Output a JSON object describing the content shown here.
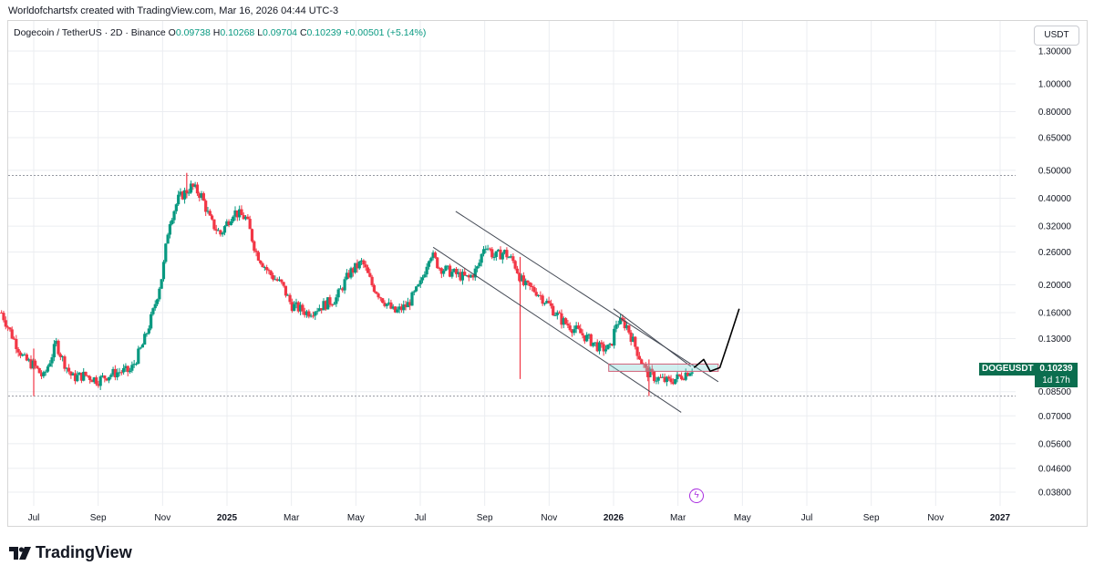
{
  "caption": "Worldofchartsfx created with TradingView.com, Mar 16, 2026 04:44 UTC-3",
  "legend": {
    "symbol": "Dogecoin / TetherUS · 2D · Binance",
    "open_label": "O",
    "open": "0.09738",
    "high_label": "H",
    "high": "0.10268",
    "low_label": "L",
    "low": "0.09704",
    "close_label": "C",
    "close": "0.10239",
    "change": "+0.00501 (+5.14%)"
  },
  "currency": "USDT",
  "price_tag": {
    "symbol": "DOGEUSDT",
    "price": "0.10239",
    "countdown": "1d 17h"
  },
  "brand": {
    "name": "TradingView",
    "logo_text": "TV"
  },
  "colors": {
    "up": "#089981",
    "down": "#f23645",
    "tag": "#0b6e4f",
    "grid": "#ebedf1"
  },
  "chart_data": {
    "type": "candlestick",
    "title": "Dogecoin / TetherUS · 2D · Binance",
    "y_scale": "log",
    "ylim": [
      0.034,
      1.4
    ],
    "xlim": [
      0,
      34
    ],
    "y_ticks": [
      "1.30000",
      "1.00000",
      "0.80000",
      "0.65000",
      "0.50000",
      "0.40000",
      "0.32000",
      "0.26000",
      "0.20000",
      "0.16000",
      "0.13000",
      "0.10239",
      "0.08500",
      "0.07000",
      "0.05600",
      "0.04600",
      "0.03800"
    ],
    "x_ticks": [
      {
        "t": 1,
        "label": "Jul"
      },
      {
        "t": 3,
        "label": "Sep"
      },
      {
        "t": 5,
        "label": "Nov"
      },
      {
        "t": 7,
        "label": "2025"
      },
      {
        "t": 9,
        "label": "Mar"
      },
      {
        "t": 11,
        "label": "May"
      },
      {
        "t": 13,
        "label": "Jul"
      },
      {
        "t": 15,
        "label": "Sep"
      },
      {
        "t": 17,
        "label": "Nov"
      },
      {
        "t": 19,
        "label": "2026"
      },
      {
        "t": 21,
        "label": "Mar"
      },
      {
        "t": 23,
        "label": "May"
      },
      {
        "t": 25,
        "label": "Jul"
      },
      {
        "t": 27,
        "label": "Sep"
      },
      {
        "t": 29,
        "label": "Nov"
      },
      {
        "t": 31,
        "label": "2027"
      }
    ],
    "horizontal_lines": [
      0.48,
      0.082
    ],
    "last_price": 0.10239,
    "price_path": [
      [
        0.0,
        0.16
      ],
      [
        0.3,
        0.135
      ],
      [
        0.7,
        0.11
      ],
      [
        1.0,
        0.105
      ],
      [
        1.3,
        0.095
      ],
      [
        1.7,
        0.125
      ],
      [
        1.9,
        0.11
      ],
      [
        2.2,
        0.095
      ],
      [
        2.6,
        0.097
      ],
      [
        3.0,
        0.093
      ],
      [
        3.3,
        0.097
      ],
      [
        3.7,
        0.1
      ],
      [
        4.0,
        0.1
      ],
      [
        4.4,
        0.125
      ],
      [
        4.7,
        0.16
      ],
      [
        5.0,
        0.22
      ],
      [
        5.2,
        0.33
      ],
      [
        5.5,
        0.4
      ],
      [
        5.9,
        0.44
      ],
      [
        6.2,
        0.41
      ],
      [
        6.5,
        0.33
      ],
      [
        6.8,
        0.3
      ],
      [
        7.2,
        0.36
      ],
      [
        7.6,
        0.34
      ],
      [
        7.9,
        0.26
      ],
      [
        8.3,
        0.22
      ],
      [
        8.7,
        0.2
      ],
      [
        9.0,
        0.17
      ],
      [
        9.5,
        0.16
      ],
      [
        10.0,
        0.17
      ],
      [
        10.4,
        0.18
      ],
      [
        10.8,
        0.22
      ],
      [
        11.2,
        0.24
      ],
      [
        11.5,
        0.2
      ],
      [
        11.8,
        0.18
      ],
      [
        12.2,
        0.16
      ],
      [
        12.6,
        0.17
      ],
      [
        13.0,
        0.2
      ],
      [
        13.3,
        0.26
      ],
      [
        13.6,
        0.23
      ],
      [
        14.0,
        0.22
      ],
      [
        14.5,
        0.21
      ],
      [
        14.8,
        0.23
      ],
      [
        15.0,
        0.28
      ],
      [
        15.3,
        0.25
      ],
      [
        15.6,
        0.26
      ],
      [
        15.9,
        0.24
      ],
      [
        16.2,
        0.2
      ],
      [
        16.6,
        0.19
      ],
      [
        17.0,
        0.17
      ],
      [
        17.4,
        0.15
      ],
      [
        17.8,
        0.14
      ],
      [
        18.2,
        0.13
      ],
      [
        18.6,
        0.12
      ],
      [
        18.9,
        0.12
      ],
      [
        19.1,
        0.15
      ],
      [
        19.4,
        0.145
      ],
      [
        19.7,
        0.12
      ],
      [
        20.0,
        0.1
      ],
      [
        20.3,
        0.095
      ],
      [
        20.7,
        0.092
      ],
      [
        21.0,
        0.095
      ],
      [
        21.2,
        0.098
      ],
      [
        21.45,
        0.10239
      ]
    ],
    "wicks": [
      {
        "t": 1.0,
        "low": 0.082,
        "high": 0.12
      },
      {
        "t": 5.75,
        "low": 0.4,
        "high": 0.49
      },
      {
        "t": 16.1,
        "low": 0.094,
        "high": 0.25
      },
      {
        "t": 20.1,
        "low": 0.082,
        "high": 0.11
      }
    ],
    "channel": {
      "upper": [
        [
          14.1,
          0.36
        ],
        [
          22.25,
          0.092
        ]
      ],
      "lower": [
        [
          13.4,
          0.27
        ],
        [
          21.1,
          0.072
        ]
      ],
      "short_trend": [
        [
          19.0,
          0.165
        ],
        [
          21.4,
          0.104
        ]
      ]
    },
    "box": {
      "t1": 18.85,
      "t2": 22.25,
      "p1": 0.1,
      "p2": 0.106
    },
    "projection": [
      [
        21.5,
        0.103
      ],
      [
        21.8,
        0.11
      ],
      [
        22.0,
        0.1
      ],
      [
        22.3,
        0.103
      ],
      [
        22.6,
        0.13
      ],
      [
        22.9,
        0.165
      ]
    ]
  }
}
